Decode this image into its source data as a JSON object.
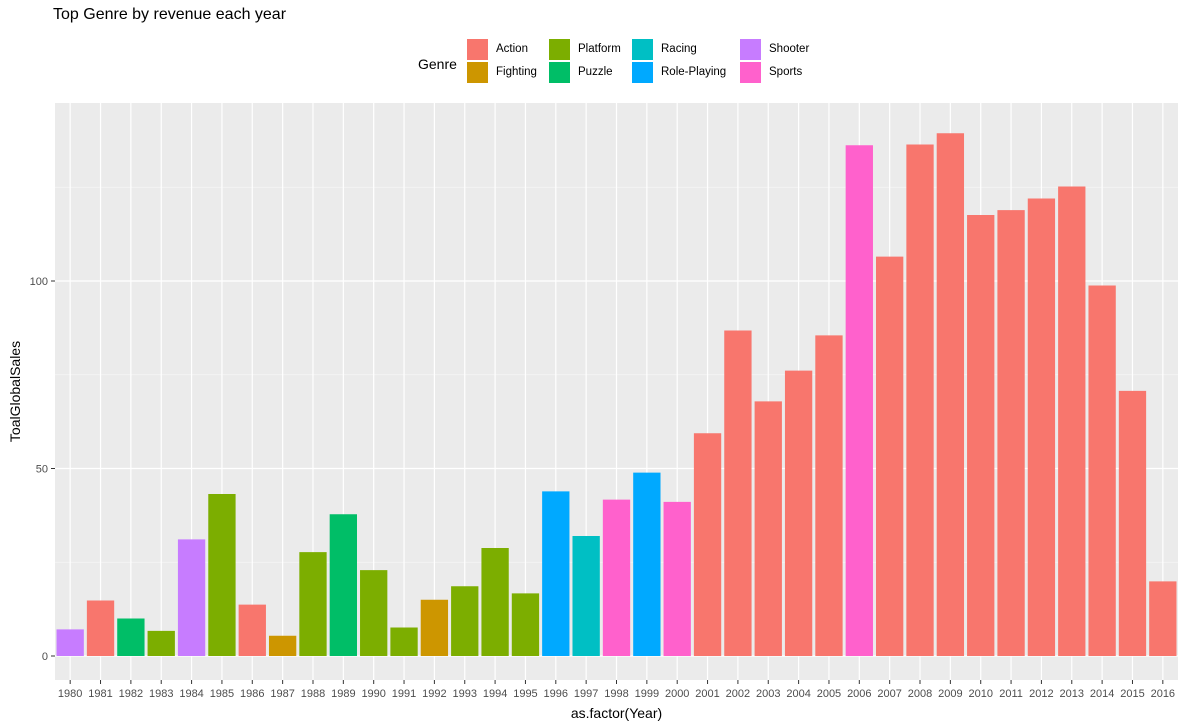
{
  "chart_data": {
    "type": "bar",
    "title": "Top Genre by revenue each year",
    "xlabel": "as.factor(Year)",
    "ylabel": "ToalGlobalSales",
    "ylim": [
      -3,
      147
    ],
    "yticks": [
      0,
      50,
      100
    ],
    "grid": true,
    "legend": {
      "title": "Genre",
      "placement": "top",
      "entries": [
        {
          "name": "Action",
          "color": "#F8766D"
        },
        {
          "name": "Fighting",
          "color": "#CD9600"
        },
        {
          "name": "Platform",
          "color": "#7CAE00"
        },
        {
          "name": "Puzzle",
          "color": "#00BE67"
        },
        {
          "name": "Racing",
          "color": "#00BFC4"
        },
        {
          "name": "Role-Playing",
          "color": "#00A9FF"
        },
        {
          "name": "Shooter",
          "color": "#C77CFF"
        },
        {
          "name": "Sports",
          "color": "#FF61CC"
        }
      ]
    },
    "categories": [
      "1980",
      "1981",
      "1982",
      "1983",
      "1984",
      "1985",
      "1986",
      "1987",
      "1988",
      "1989",
      "1990",
      "1991",
      "1992",
      "1993",
      "1994",
      "1995",
      "1996",
      "1997",
      "1998",
      "1999",
      "2000",
      "2001",
      "2002",
      "2003",
      "2004",
      "2005",
      "2006",
      "2007",
      "2008",
      "2009",
      "2010",
      "2011",
      "2012",
      "2013",
      "2014",
      "2015",
      "2016"
    ],
    "values": [
      7.1,
      14.8,
      10.0,
      6.7,
      31.1,
      43.2,
      13.7,
      5.4,
      27.7,
      37.8,
      22.9,
      7.6,
      15.0,
      18.6,
      28.8,
      16.7,
      43.9,
      32.0,
      41.7,
      48.9,
      41.1,
      59.4,
      86.8,
      67.9,
      76.1,
      85.5,
      136.2,
      106.5,
      136.4,
      139.4,
      117.6,
      118.9,
      122.0,
      125.2,
      98.8,
      70.7,
      19.9
    ],
    "genres": [
      "Shooter",
      "Action",
      "Puzzle",
      "Platform",
      "Shooter",
      "Platform",
      "Action",
      "Fighting",
      "Platform",
      "Puzzle",
      "Platform",
      "Platform",
      "Fighting",
      "Platform",
      "Platform",
      "Platform",
      "Role-Playing",
      "Racing",
      "Sports",
      "Role-Playing",
      "Sports",
      "Action",
      "Action",
      "Action",
      "Action",
      "Action",
      "Sports",
      "Action",
      "Action",
      "Action",
      "Action",
      "Action",
      "Action",
      "Action",
      "Action",
      "Action",
      "Action"
    ]
  }
}
